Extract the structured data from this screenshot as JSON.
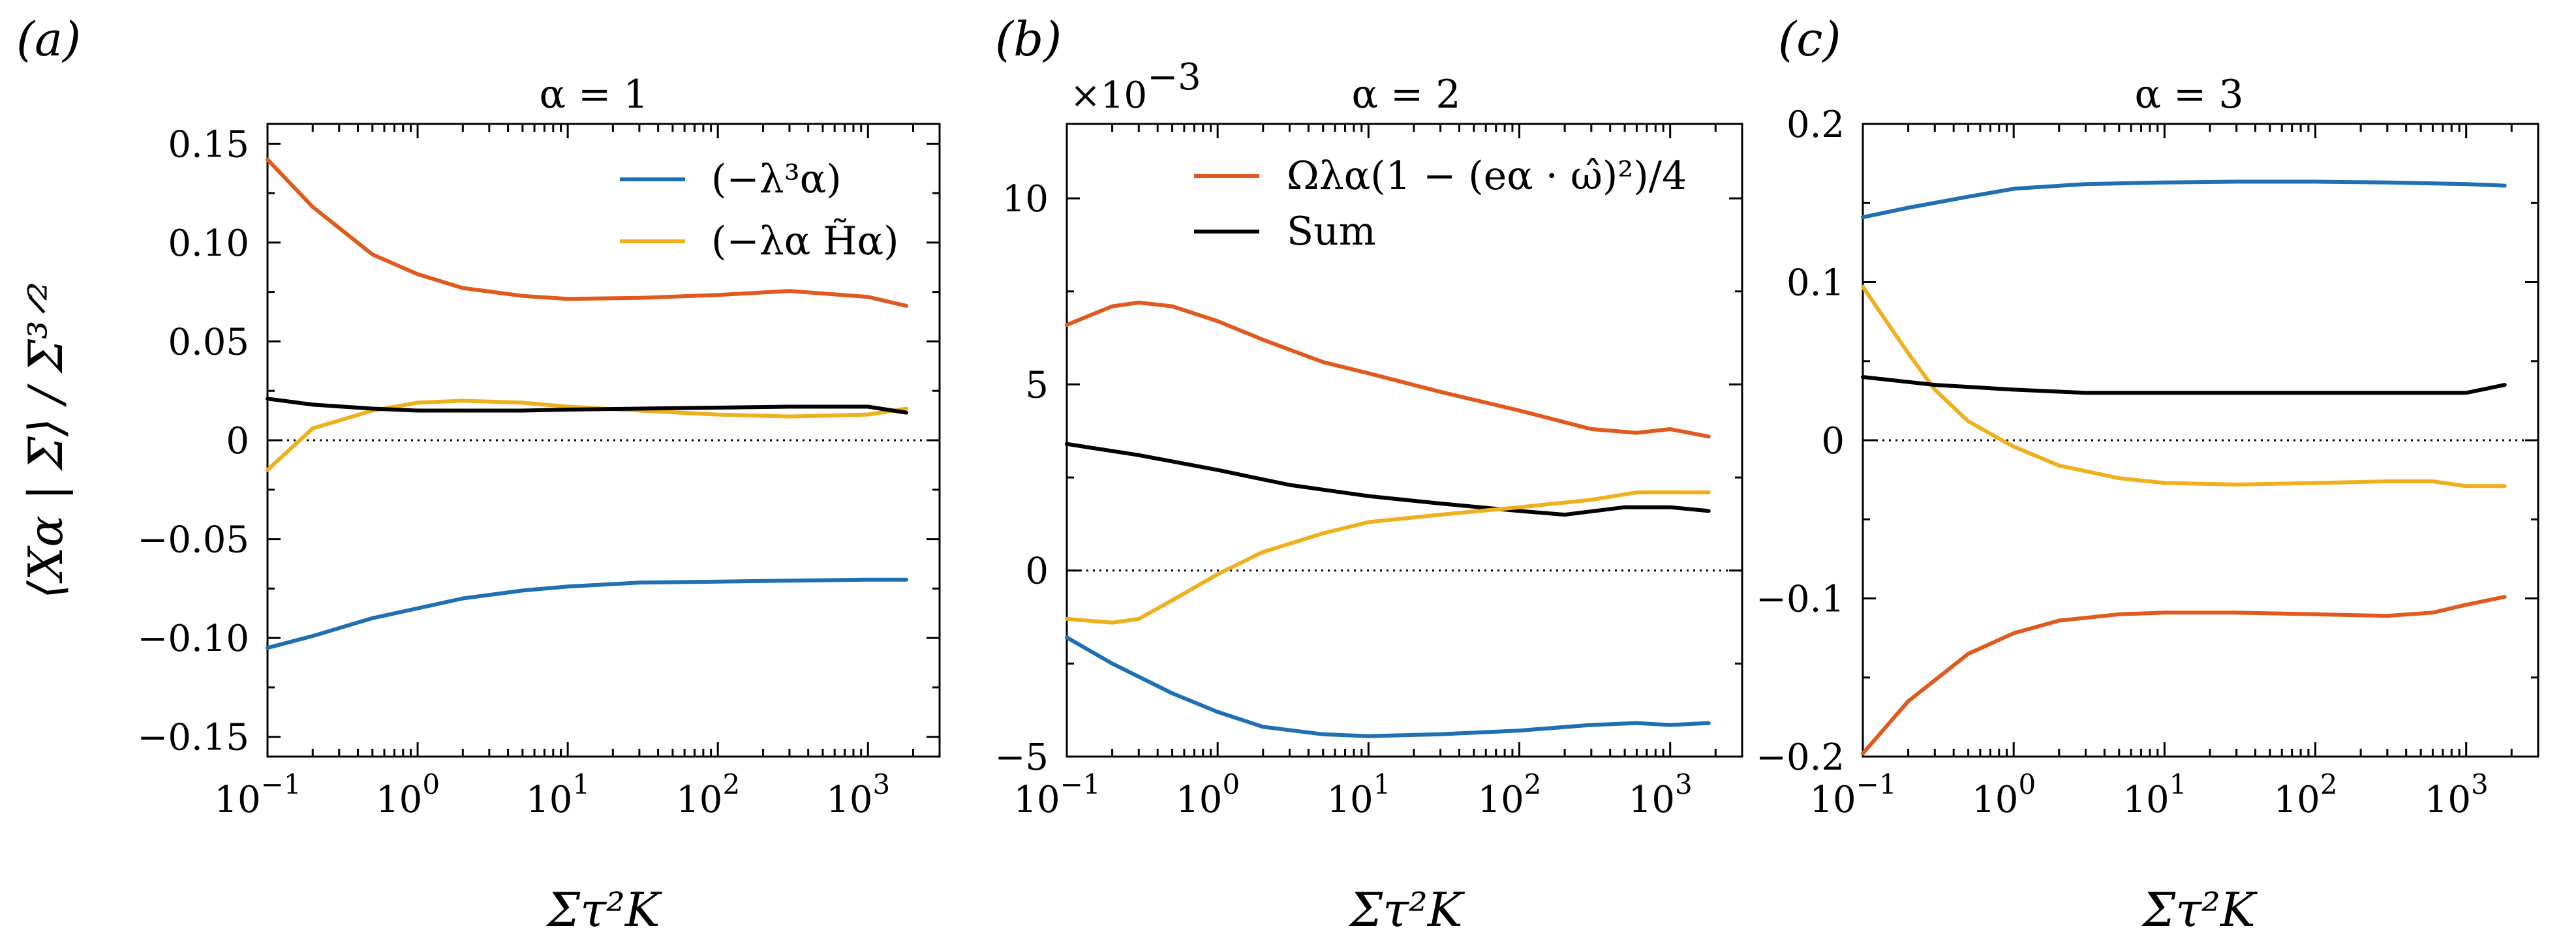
{
  "colors": {
    "blue": "#1f6fb5",
    "orange": "#e05a1e",
    "yellow": "#eeb11d",
    "black": "#000000"
  },
  "legend": {
    "a": [
      {
        "label": "(−λ³α)",
        "color": "#1f6fb5"
      },
      {
        "label": "(−λα H̃α)",
        "color": "#eeb11d"
      }
    ],
    "b": [
      {
        "label": "Ωλα(1 − (eα · ω̂)²)/4",
        "color": "#e05a1e"
      },
      {
        "label": "Sum",
        "color": "#000000"
      }
    ]
  },
  "chart_data": [
    {
      "panel": "(a)",
      "title": "α = 1",
      "type": "line",
      "xscale": "log",
      "xlabel": "Στ²K",
      "ylabel": "⟨Xα | Σ⟩ / Σ³ᐟ²",
      "xlim": [
        0.1,
        3000
      ],
      "ylim": [
        -0.16,
        0.16
      ],
      "xticks": [
        0.1,
        1,
        10,
        100,
        1000
      ],
      "xtick_labels": [
        "10",
        "10",
        "10",
        "10",
        "10"
      ],
      "xtick_exps": [
        "−1",
        "0",
        "1",
        "2",
        "3"
      ],
      "yticks": [
        0.15,
        0.1,
        0.05,
        0,
        -0.05,
        -0.1,
        -0.15
      ],
      "ytick_labels": [
        "0.15",
        "0.10",
        "0.05",
        "0",
        "−0.05",
        "−0.10",
        "−0.15"
      ],
      "zero_line": true,
      "series": [
        {
          "name": "(−λ³α)",
          "color": "#1f6fb5",
          "x": [
            0.1,
            0.2,
            0.5,
            1,
            2,
            5,
            10,
            30,
            100,
            300,
            1000,
            1800
          ],
          "y": [
            -0.105,
            -0.099,
            -0.09,
            -0.085,
            -0.08,
            -0.076,
            -0.074,
            -0.072,
            -0.0715,
            -0.071,
            -0.0705,
            -0.0705
          ]
        },
        {
          "name": "(−λα H̃α)",
          "color": "#eeb11d",
          "x": [
            0.1,
            0.2,
            0.5,
            1,
            2,
            5,
            10,
            30,
            100,
            300,
            1000,
            1800
          ],
          "y": [
            -0.015,
            0.006,
            0.015,
            0.019,
            0.02,
            0.019,
            0.017,
            0.015,
            0.013,
            0.012,
            0.013,
            0.016
          ]
        },
        {
          "color": "#e05a1e",
          "x": [
            0.1,
            0.2,
            0.5,
            1,
            2,
            5,
            10,
            30,
            100,
            300,
            1000,
            1800
          ],
          "y": [
            0.142,
            0.118,
            0.094,
            0.084,
            0.077,
            0.073,
            0.0715,
            0.072,
            0.0735,
            0.0755,
            0.0725,
            0.068
          ]
        },
        {
          "color": "#000000",
          "x": [
            0.1,
            0.2,
            0.5,
            1,
            2,
            5,
            10,
            30,
            100,
            300,
            1000,
            1800
          ],
          "y": [
            0.021,
            0.018,
            0.016,
            0.015,
            0.015,
            0.015,
            0.0155,
            0.016,
            0.0165,
            0.017,
            0.017,
            0.014
          ]
        }
      ]
    },
    {
      "panel": "(b)",
      "title": "α = 2",
      "multiplier": "×10",
      "multiplier_exp": "−3",
      "type": "line",
      "xscale": "log",
      "xlabel": "Στ²K",
      "xlim": [
        0.1,
        3000
      ],
      "ylim": [
        -5,
        12
      ],
      "xticks": [
        0.1,
        1,
        10,
        100,
        1000
      ],
      "xtick_labels": [
        "10",
        "10",
        "10",
        "10",
        "10"
      ],
      "xtick_exps": [
        "−1",
        "0",
        "1",
        "2",
        "3"
      ],
      "yticks": [
        10,
        5,
        0,
        -5
      ],
      "ytick_labels": [
        "10",
        "5",
        "0",
        "−5"
      ],
      "zero_line": true,
      "series": [
        {
          "name": "Ωλα(1 − (eα · ω̂)²)/4",
          "color": "#e05a1e",
          "x": [
            0.1,
            0.2,
            0.3,
            0.5,
            1,
            2,
            5,
            10,
            30,
            100,
            300,
            600,
            1000,
            1800
          ],
          "y": [
            6.6,
            7.1,
            7.2,
            7.1,
            6.7,
            6.2,
            5.6,
            5.3,
            4.8,
            4.3,
            3.8,
            3.7,
            3.8,
            3.6
          ]
        },
        {
          "name": "Sum",
          "color": "#000000",
          "x": [
            0.1,
            0.3,
            1,
            3,
            10,
            30,
            100,
            200,
            500,
            1000,
            1800
          ],
          "y": [
            3.4,
            3.1,
            2.7,
            2.3,
            2.0,
            1.8,
            1.6,
            1.5,
            1.7,
            1.7,
            1.6
          ]
        },
        {
          "color": "#eeb11d",
          "x": [
            0.1,
            0.2,
            0.3,
            0.5,
            1,
            2,
            5,
            10,
            30,
            100,
            300,
            600,
            1800
          ],
          "y": [
            -1.3,
            -1.4,
            -1.3,
            -0.8,
            -0.1,
            0.5,
            1.0,
            1.3,
            1.5,
            1.7,
            1.9,
            2.1,
            2.1
          ]
        },
        {
          "color": "#1f6fb5",
          "x": [
            0.1,
            0.2,
            0.5,
            1,
            2,
            5,
            10,
            30,
            100,
            300,
            600,
            1000,
            1800
          ],
          "y": [
            -1.8,
            -2.5,
            -3.3,
            -3.8,
            -4.2,
            -4.4,
            -4.45,
            -4.4,
            -4.3,
            -4.15,
            -4.1,
            -4.15,
            -4.1
          ]
        }
      ]
    },
    {
      "panel": "(c)",
      "title": "α = 3",
      "type": "line",
      "xscale": "log",
      "xlabel": "Στ²K",
      "xlim": [
        0.1,
        3000
      ],
      "ylim": [
        -0.2,
        0.2
      ],
      "xticks": [
        0.1,
        1,
        10,
        100,
        1000
      ],
      "xtick_labels": [
        "10",
        "10",
        "10",
        "10",
        "10"
      ],
      "xtick_exps": [
        "−1",
        "0",
        "1",
        "2",
        "3"
      ],
      "yticks": [
        0.2,
        0.1,
        0,
        -0.1,
        -0.2
      ],
      "ytick_labels": [
        "0.2",
        "0.1",
        "0",
        "−0.1",
        "−0.2"
      ],
      "zero_line": true,
      "series": [
        {
          "color": "#1f6fb5",
          "x": [
            0.1,
            0.2,
            0.5,
            1,
            3,
            10,
            30,
            100,
            300,
            1000,
            1800
          ],
          "y": [
            0.141,
            0.147,
            0.154,
            0.159,
            0.162,
            0.163,
            0.1635,
            0.1635,
            0.163,
            0.162,
            0.161
          ]
        },
        {
          "color": "#eeb11d",
          "x": [
            0.1,
            0.2,
            0.3,
            0.5,
            0.8,
            1,
            2,
            5,
            10,
            30,
            100,
            300,
            600,
            1000,
            1800
          ],
          "y": [
            0.097,
            0.055,
            0.032,
            0.012,
            0.001,
            -0.004,
            -0.016,
            -0.024,
            -0.027,
            -0.028,
            -0.027,
            -0.026,
            -0.026,
            -0.029,
            -0.029
          ]
        },
        {
          "color": "#000000",
          "x": [
            0.1,
            0.3,
            1,
            3,
            10,
            30,
            100,
            300,
            1000,
            1800
          ],
          "y": [
            0.04,
            0.035,
            0.032,
            0.03,
            0.03,
            0.03,
            0.03,
            0.03,
            0.03,
            0.035
          ]
        },
        {
          "color": "#e05a1e",
          "x": [
            0.1,
            0.2,
            0.5,
            1,
            2,
            5,
            10,
            30,
            100,
            300,
            600,
            1000,
            1800
          ],
          "y": [
            -0.198,
            -0.165,
            -0.135,
            -0.122,
            -0.114,
            -0.11,
            -0.109,
            -0.109,
            -0.11,
            -0.111,
            -0.109,
            -0.104,
            -0.099
          ]
        }
      ]
    }
  ]
}
